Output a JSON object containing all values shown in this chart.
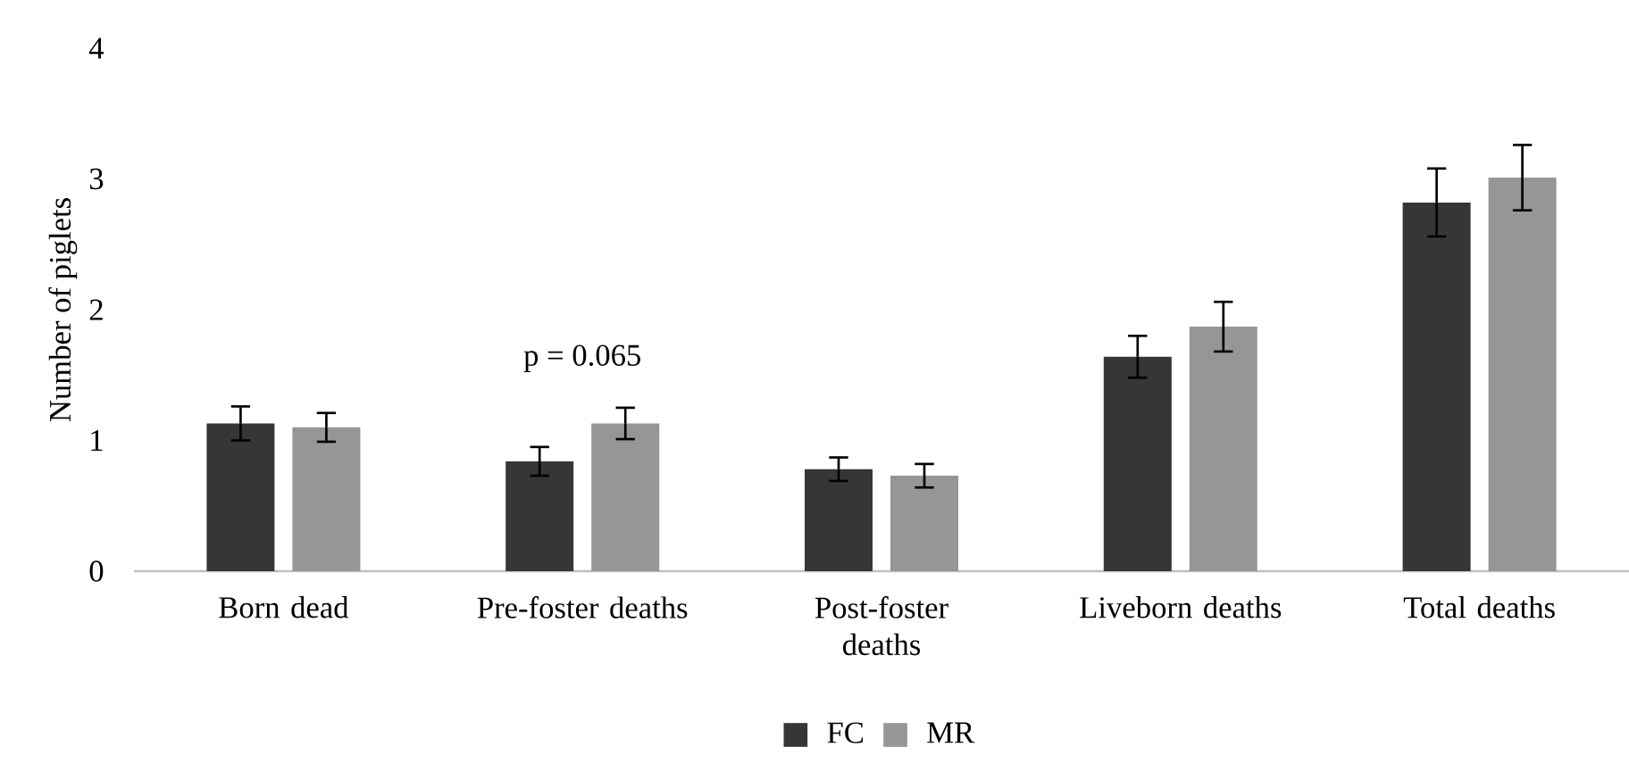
{
  "chart_data": {
    "type": "bar",
    "ylabel": "Number of piglets",
    "categories": [
      "Born dead",
      "Pre-foster deaths",
      "Post-foster deaths",
      "Liveborn deaths",
      "Total deaths"
    ],
    "series": [
      {
        "name": "FC",
        "color": "#363636",
        "values": [
          1.13,
          0.84,
          0.78,
          1.64,
          2.82
        ],
        "errors": [
          0.13,
          0.11,
          0.09,
          0.16,
          0.26
        ]
      },
      {
        "name": "MR",
        "color": "#969696",
        "values": [
          1.1,
          1.13,
          0.73,
          1.87,
          3.01
        ],
        "errors": [
          0.11,
          0.12,
          0.09,
          0.19,
          0.25
        ]
      }
    ],
    "ylim": [
      0,
      4
    ],
    "yticks": [
      0,
      1,
      2,
      3,
      4
    ],
    "grid": false,
    "legend": "bottom",
    "annotations": [
      "p = 0.065"
    ]
  }
}
